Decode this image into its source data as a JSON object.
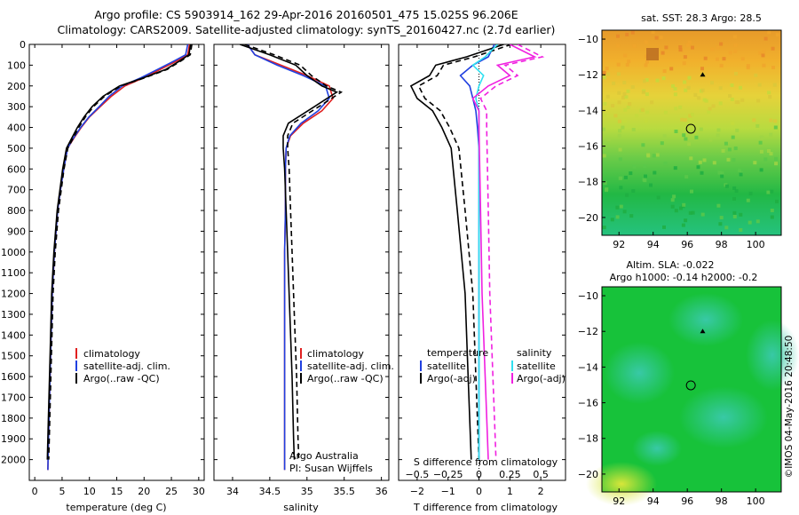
{
  "header": {
    "title_line1": "Argo profile: CS 5903914_162 29-Apr-2016 20160501_475 15.025S 96.206E",
    "title_line2": "Climatology: CARS2009. Satellite-adjusted climatology: synTS_20160427.nc (2.7d earlier)"
  },
  "credits": {
    "argo_australia": "Argo Australia",
    "pi": "PI: Susan Wijffels",
    "imos": "©IMOS 04-May-2016 20:48:50"
  },
  "colors": {
    "climatology": "#e02020",
    "satellite": "#2040e0",
    "argo": "#000000",
    "sat_s": "#30e0f0",
    "argo_s": "#f020e0"
  },
  "chart_data": [
    {
      "id": "temperature",
      "type": "line",
      "xlabel": "temperature (deg C)",
      "xlim": [
        -1,
        31
      ],
      "ylim": [
        2100,
        0
      ],
      "xticks": [
        0,
        5,
        10,
        15,
        20,
        25,
        30
      ],
      "yticks": [
        0,
        100,
        200,
        300,
        400,
        500,
        600,
        700,
        800,
        900,
        1000,
        1100,
        1200,
        1300,
        1400,
        1500,
        1600,
        1700,
        1800,
        1900,
        2000
      ],
      "legend": [
        "climatology",
        "satellite-adj. clim.",
        "Argo(..raw -QC)"
      ],
      "series": [
        {
          "name": "climatology",
          "color": "#e02020",
          "x": [
            28.3,
            28.0,
            26.0,
            23.0,
            20.0,
            16.5,
            14.0,
            12.0,
            10.0,
            8.5,
            7.2,
            6.0,
            5.3,
            4.7,
            4.2,
            3.6,
            3.2,
            2.9,
            2.6,
            2.4
          ],
          "y": [
            0,
            50,
            80,
            120,
            160,
            200,
            250,
            300,
            350,
            400,
            450,
            500,
            600,
            700,
            800,
            1000,
            1200,
            1500,
            1800,
            2050
          ]
        },
        {
          "name": "satellite-adj. clim.",
          "color": "#2040e0",
          "x": [
            28.0,
            27.6,
            25.5,
            22.5,
            19.5,
            16.0,
            13.6,
            11.8,
            9.9,
            8.4,
            7.1,
            6.0,
            5.3,
            4.7,
            4.2,
            3.6,
            3.2,
            2.9,
            2.6,
            2.4
          ],
          "y": [
            0,
            50,
            80,
            120,
            160,
            200,
            250,
            300,
            350,
            400,
            450,
            500,
            600,
            700,
            800,
            1000,
            1200,
            1500,
            1800,
            2050
          ]
        },
        {
          "name": "Argo(..raw -QC)",
          "color": "#000000",
          "x": [
            28.5,
            28.2,
            26.5,
            24.0,
            20.0,
            15.5,
            12.5,
            10.5,
            9.0,
            7.8,
            6.8,
            5.8,
            5.1,
            4.6,
            4.1,
            3.5,
            3.1,
            2.8,
            2.5,
            2.3
          ],
          "y": [
            0,
            50,
            80,
            120,
            160,
            200,
            250,
            300,
            350,
            400,
            450,
            500,
            600,
            700,
            800,
            1000,
            1200,
            1500,
            1800,
            2000
          ]
        }
      ]
    },
    {
      "id": "salinity",
      "type": "line",
      "xlabel": "salinity",
      "xlim": [
        33.75,
        36.1
      ],
      "ylim": [
        2100,
        0
      ],
      "xticks": [
        34,
        34.5,
        35,
        35.5,
        36
      ],
      "legend": [
        "climatology",
        "satellite-adj. clim.",
        "Argo(..raw -QC)"
      ],
      "series": [
        {
          "name": "climatology",
          "color": "#e02020",
          "x": [
            34.2,
            34.3,
            34.65,
            35.0,
            35.3,
            35.35,
            35.2,
            34.95,
            34.78,
            34.72,
            34.71,
            34.71,
            34.7,
            34.7,
            34.7,
            34.7,
            34.7
          ],
          "y": [
            0,
            50,
            100,
            150,
            200,
            260,
            320,
            380,
            440,
            500,
            600,
            800,
            1000,
            1300,
            1600,
            1900,
            2050
          ]
        },
        {
          "name": "satellite-adj. clim.",
          "color": "#2040e0",
          "x": [
            34.2,
            34.3,
            34.6,
            34.95,
            35.25,
            35.3,
            35.15,
            34.92,
            34.77,
            34.72,
            34.71,
            34.71,
            34.7,
            34.7,
            34.7,
            34.7,
            34.7
          ],
          "y": [
            0,
            50,
            100,
            150,
            200,
            260,
            320,
            380,
            440,
            500,
            600,
            800,
            1000,
            1300,
            1600,
            1900,
            2050
          ]
        },
        {
          "name": "Argo(..raw -QC)",
          "color": "#000000",
          "x": [
            34.1,
            34.5,
            34.85,
            35.0,
            35.2,
            35.4,
            35.1,
            34.75,
            34.68,
            34.68,
            34.7,
            34.72,
            34.74,
            34.77,
            34.8,
            34.82,
            34.83
          ],
          "y": [
            0,
            50,
            100,
            150,
            200,
            230,
            300,
            380,
            440,
            500,
            600,
            800,
            1000,
            1300,
            1600,
            1900,
            2000
          ]
        }
      ]
    },
    {
      "id": "difference",
      "type": "line",
      "xlabel": "T difference from climatology",
      "xlabel_top": "S difference from climatology",
      "xlim": [
        -2.6,
        2.8
      ],
      "ylim": [
        2100,
        0
      ],
      "xticks": [
        -2,
        -1,
        0,
        1,
        2
      ],
      "xticks_s": [
        -0.5,
        -0.25,
        0,
        0.25,
        0.5
      ],
      "xticks_s_pos": [
        -2,
        -1,
        0,
        1,
        2
      ],
      "legend_temperature_title": "temperature",
      "legend_salinity_title": "salinity",
      "legend_temperature": [
        "satellite",
        "Argo(-adj)"
      ],
      "legend_salinity": [
        "satellite",
        "Argo(-adj)"
      ],
      "series": [
        {
          "name": "T satellite",
          "color": "#2040e0",
          "x": [
            0.5,
            0.3,
            -0.2,
            -0.6,
            -0.3,
            -0.2,
            -0.1,
            -0.05,
            0.0,
            0.0,
            0.0,
            0.0,
            0.0
          ],
          "y": [
            0,
            60,
            100,
            150,
            200,
            260,
            320,
            400,
            500,
            800,
            1200,
            1600,
            2000
          ]
        },
        {
          "name": "T Argo(-adj)",
          "color": "#000000",
          "x": [
            0.8,
            -0.4,
            -1.4,
            -1.6,
            -2.2,
            -2.0,
            -1.5,
            -1.2,
            -0.9,
            -0.7,
            -0.45,
            -0.35,
            -0.25
          ],
          "y": [
            0,
            60,
            100,
            150,
            200,
            260,
            320,
            400,
            500,
            800,
            1200,
            1600,
            2000
          ]
        },
        {
          "name": "S satellite",
          "color": "#30e0f0",
          "x": [
            0.6,
            0.2,
            -0.2,
            0.15,
            0.0,
            -0.1,
            0.0,
            0.0,
            0.0,
            0.0,
            0.0,
            0.0
          ],
          "y": [
            0,
            60,
            100,
            150,
            200,
            260,
            320,
            400,
            800,
            1200,
            1600,
            2000
          ]
        },
        {
          "name": "S Argo(-adj)",
          "color": "#f020e0",
          "x": [
            1.0,
            1.8,
            0.6,
            1.0,
            0.3,
            -0.2,
            0.0,
            0.0,
            0.05,
            0.1,
            0.2,
            0.3
          ],
          "y": [
            0,
            60,
            100,
            150,
            200,
            260,
            320,
            400,
            800,
            1200,
            1600,
            2000
          ]
        }
      ]
    },
    {
      "id": "sst_map",
      "type": "heatmap",
      "title": "sat. SST: 28.3 Argo: 28.5",
      "xlim": [
        91,
        101.5
      ],
      "ylim": [
        -21,
        -9.5
      ],
      "xticks": [
        92,
        94,
        96,
        98,
        100
      ],
      "yticks": [
        -10,
        -12,
        -14,
        -16,
        -18,
        -20
      ],
      "argo_position": [
        96.206,
        -15.025
      ]
    },
    {
      "id": "sla_map",
      "type": "heatmap",
      "title_line1": "Altim. SLA: -0.022",
      "title_line2": "Argo h1000: -0.14 h2000: -0.2",
      "xlim": [
        91,
        101.5
      ],
      "ylim": [
        -21,
        -9.5
      ],
      "xticks": [
        92,
        94,
        96,
        98,
        100
      ],
      "yticks": [
        -10,
        -12,
        -14,
        -16,
        -18,
        -20
      ],
      "argo_position": [
        96.206,
        -15.025
      ]
    }
  ]
}
